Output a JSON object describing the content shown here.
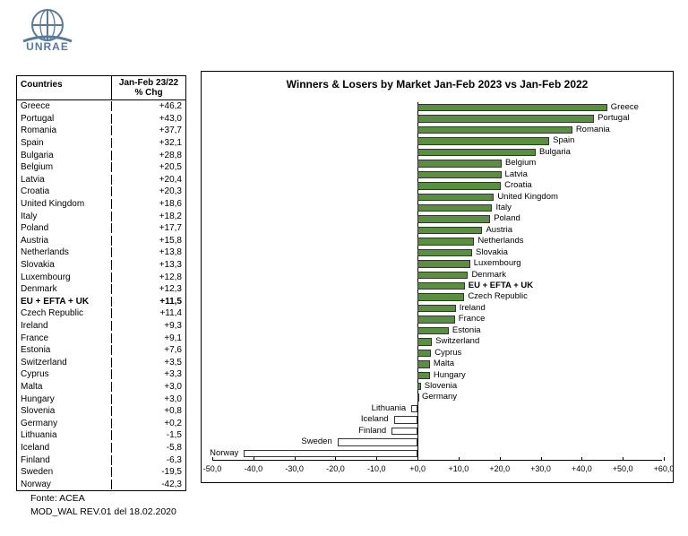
{
  "logo": {
    "text": "UNRAE"
  },
  "table": {
    "headers": {
      "countries": "Countries",
      "chg": "Jan-Feb 23/22\n% Chg"
    },
    "rows": [
      {
        "country": "Greece",
        "value": "+46,2",
        "bold": false
      },
      {
        "country": "Portugal",
        "value": "+43,0",
        "bold": false
      },
      {
        "country": "Romania",
        "value": "+37,7",
        "bold": false
      },
      {
        "country": "Spain",
        "value": "+32,1",
        "bold": false
      },
      {
        "country": "Bulgaria",
        "value": "+28,8",
        "bold": false
      },
      {
        "country": "Belgium",
        "value": "+20,5",
        "bold": false
      },
      {
        "country": "Latvia",
        "value": "+20,4",
        "bold": false
      },
      {
        "country": "Croatia",
        "value": "+20,3",
        "bold": false
      },
      {
        "country": "United Kingdom",
        "value": "+18,6",
        "bold": false
      },
      {
        "country": "Italy",
        "value": "+18,2",
        "bold": false
      },
      {
        "country": "Poland",
        "value": "+17,7",
        "bold": false
      },
      {
        "country": "Austria",
        "value": "+15,8",
        "bold": false
      },
      {
        "country": "Netherlands",
        "value": "+13,8",
        "bold": false
      },
      {
        "country": "Slovakia",
        "value": "+13,3",
        "bold": false
      },
      {
        "country": "Luxembourg",
        "value": "+12,8",
        "bold": false
      },
      {
        "country": "Denmark",
        "value": "+12,3",
        "bold": false
      },
      {
        "country": "EU + EFTA + UK",
        "value": "+11,5",
        "bold": true
      },
      {
        "country": "Czech Republic",
        "value": "+11,4",
        "bold": false
      },
      {
        "country": "Ireland",
        "value": "+9,3",
        "bold": false
      },
      {
        "country": "France",
        "value": "+9,1",
        "bold": false
      },
      {
        "country": "Estonia",
        "value": "+7,6",
        "bold": false
      },
      {
        "country": "Switzerland",
        "value": "+3,5",
        "bold": false
      },
      {
        "country": "Cyprus",
        "value": "+3,3",
        "bold": false
      },
      {
        "country": "Malta",
        "value": "+3,0",
        "bold": false
      },
      {
        "country": "Hungary",
        "value": "+3,0",
        "bold": false
      },
      {
        "country": "Slovenia",
        "value": "+0,8",
        "bold": false
      },
      {
        "country": "Germany",
        "value": "+0,2",
        "bold": false
      },
      {
        "country": "Lithuania",
        "value": "-1,5",
        "bold": false
      },
      {
        "country": "Iceland",
        "value": "-5,8",
        "bold": false
      },
      {
        "country": "Finland",
        "value": "-6,3",
        "bold": false
      },
      {
        "country": "Sweden",
        "value": "-19,5",
        "bold": false
      },
      {
        "country": "Norway",
        "value": "-42,3",
        "bold": false
      }
    ]
  },
  "chart": {
    "title": "Winners & Losers by Market  Jan-Feb 2023 vs Jan-Feb 2022",
    "xmin": -50,
    "xmax": 60,
    "xticks": [
      {
        "v": -50,
        "label": "-50,0"
      },
      {
        "v": -40,
        "label": "-40,0"
      },
      {
        "v": -30,
        "label": "-30,0"
      },
      {
        "v": -20,
        "label": "-20,0"
      },
      {
        "v": -10,
        "label": "-10,0"
      },
      {
        "v": 0,
        "label": "+0,0"
      },
      {
        "v": 10,
        "label": "+10,0"
      },
      {
        "v": 20,
        "label": "+20,0"
      },
      {
        "v": 30,
        "label": "+30,0"
      },
      {
        "v": 40,
        "label": "+40,0"
      },
      {
        "v": 50,
        "label": "+50,0"
      },
      {
        "v": 60,
        "label": "+60,0"
      }
    ],
    "bars": [
      {
        "label": "Greece",
        "value": 46.2,
        "bold": false
      },
      {
        "label": "Portugal",
        "value": 43.0,
        "bold": false
      },
      {
        "label": "Romania",
        "value": 37.7,
        "bold": false
      },
      {
        "label": "Spain",
        "value": 32.1,
        "bold": false
      },
      {
        "label": "Bulgaria",
        "value": 28.8,
        "bold": false
      },
      {
        "label": "Belgium",
        "value": 20.5,
        "bold": false
      },
      {
        "label": "Latvia",
        "value": 20.4,
        "bold": false
      },
      {
        "label": "Croatia",
        "value": 20.3,
        "bold": false
      },
      {
        "label": "United Kingdom",
        "value": 18.6,
        "bold": false
      },
      {
        "label": "Italy",
        "value": 18.2,
        "bold": false
      },
      {
        "label": "Poland",
        "value": 17.7,
        "bold": false
      },
      {
        "label": "Austria",
        "value": 15.8,
        "bold": false
      },
      {
        "label": "Netherlands",
        "value": 13.8,
        "bold": false
      },
      {
        "label": "Slovakia",
        "value": 13.3,
        "bold": false
      },
      {
        "label": "Luxembourg",
        "value": 12.8,
        "bold": false
      },
      {
        "label": "Denmark",
        "value": 12.3,
        "bold": false
      },
      {
        "label": "EU + EFTA + UK",
        "value": 11.5,
        "bold": true
      },
      {
        "label": "Czech Republic",
        "value": 11.4,
        "bold": false
      },
      {
        "label": "Ireland",
        "value": 9.3,
        "bold": false
      },
      {
        "label": "France",
        "value": 9.1,
        "bold": false
      },
      {
        "label": "Estonia",
        "value": 7.6,
        "bold": false
      },
      {
        "label": "Switzerland",
        "value": 3.5,
        "bold": false
      },
      {
        "label": "Cyprus",
        "value": 3.3,
        "bold": false
      },
      {
        "label": "Malta",
        "value": 3.0,
        "bold": false
      },
      {
        "label": "Hungary",
        "value": 3.0,
        "bold": false
      },
      {
        "label": "Slovenia",
        "value": 0.8,
        "bold": false
      },
      {
        "label": "Germany",
        "value": 0.2,
        "bold": false
      },
      {
        "label": "Lithuania",
        "value": -1.5,
        "bold": false
      },
      {
        "label": "Iceland",
        "value": -5.8,
        "bold": false
      },
      {
        "label": "Finland",
        "value": -6.3,
        "bold": false
      },
      {
        "label": "Sweden",
        "value": -19.5,
        "bold": false
      },
      {
        "label": "Norway",
        "value": -42.3,
        "bold": false
      }
    ],
    "pos_color": "#5a8f3f",
    "neg_color": "#ffffff"
  },
  "footer": {
    "line1": "Fonte: ACEA",
    "line2": "MOD_WAL REV.01 del 18.02.2020"
  }
}
